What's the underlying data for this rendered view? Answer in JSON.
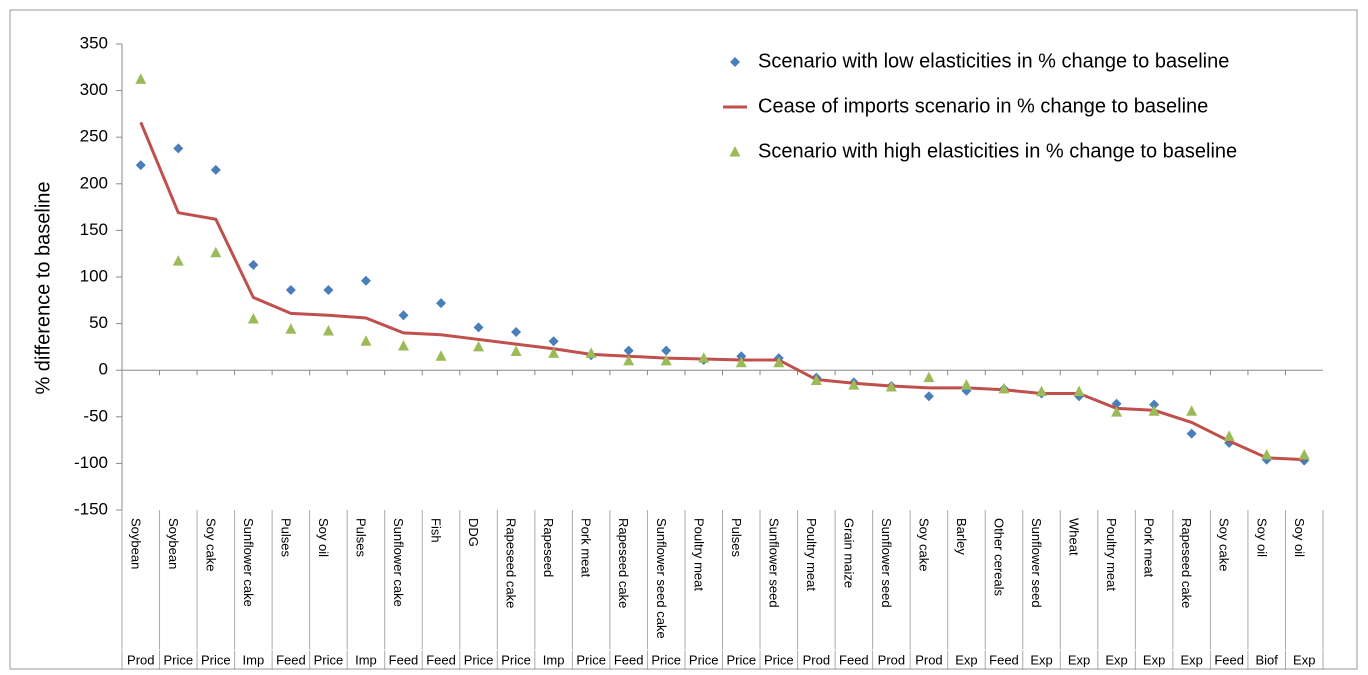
{
  "chart_data": {
    "type": "line-scatter",
    "y_label": "% difference to baseline",
    "categories": [
      "Soybean",
      "Soybean",
      "Soy cake",
      "Sunflower cake",
      "Pulses",
      "Soy oil",
      "Pulses",
      "Sunflower cake",
      "Fish",
      "DDG",
      "Rapeseed cake",
      "Rapeseed",
      "Pork meat",
      "Rapeseed cake",
      "Sunflower seed cake",
      "Poultry meat",
      "Pulses",
      "Sunflower seed",
      "Poultry meat",
      "Grain maize",
      "Sunflower seed",
      "Soy cake",
      "Barley",
      "Other cereals",
      "Sunflower seed",
      "Wheat",
      "Poultry meat",
      "Pork meat",
      "Rapeseed cake",
      "Soy cake",
      "Soy oil",
      "Soy oil"
    ],
    "category_groups": [
      "Prod",
      "Price",
      "Price",
      "Imp",
      "Feed",
      "Price",
      "Imp",
      "Feed",
      "Feed",
      "Price",
      "Price",
      "Imp",
      "Price",
      "Feed",
      "Price",
      "Price",
      "Price",
      "Price",
      "Prod",
      "Feed",
      "Prod",
      "Prod",
      "Exp",
      "Feed",
      "Exp",
      "Exp",
      "Exp",
      "Exp",
      "Exp",
      "Feed",
      "Biof",
      "Exp"
    ],
    "series": [
      {
        "name": "Scenario with low elasticities in % change to baseline",
        "color": "#4a7ebb",
        "marker": "diamond",
        "values": [
          220,
          238,
          215,
          113,
          86,
          86,
          96,
          59,
          72,
          46,
          41,
          31,
          16,
          21,
          21,
          11,
          15,
          13,
          -8,
          -13,
          -17,
          -28,
          -22,
          -20,
          -25,
          -28,
          -36,
          -37,
          -68,
          -78,
          -96,
          -97
        ]
      },
      {
        "name": "Cease of imports scenario in % change to baseline",
        "color": "#c0504d",
        "marker": "line",
        "values": [
          266,
          169,
          162,
          78,
          61,
          59,
          56,
          40,
          38,
          33,
          28,
          23,
          17,
          15,
          13,
          12,
          11,
          11,
          -10,
          -14,
          -17,
          -19,
          -19,
          -21,
          -25,
          -25,
          -41,
          -43,
          -56,
          -76,
          -94,
          -96
        ]
      },
      {
        "name": "Scenario with high elasticities in % change to baseline",
        "color": "#9bbb59",
        "marker": "triangle",
        "values": [
          312,
          117,
          126,
          55,
          44,
          42,
          31,
          26,
          15,
          25,
          20,
          18,
          18,
          10,
          10,
          13,
          8,
          8,
          -11,
          -16,
          -18,
          -8,
          -16,
          -20,
          -23,
          -23,
          -45,
          -44,
          -44,
          -71,
          -91,
          -91
        ]
      }
    ],
    "ylim": [
      -150,
      350
    ],
    "yticks": [
      -150,
      -100,
      -50,
      0,
      50,
      100,
      150,
      200,
      250,
      300,
      350
    ],
    "legend": "top-right"
  }
}
